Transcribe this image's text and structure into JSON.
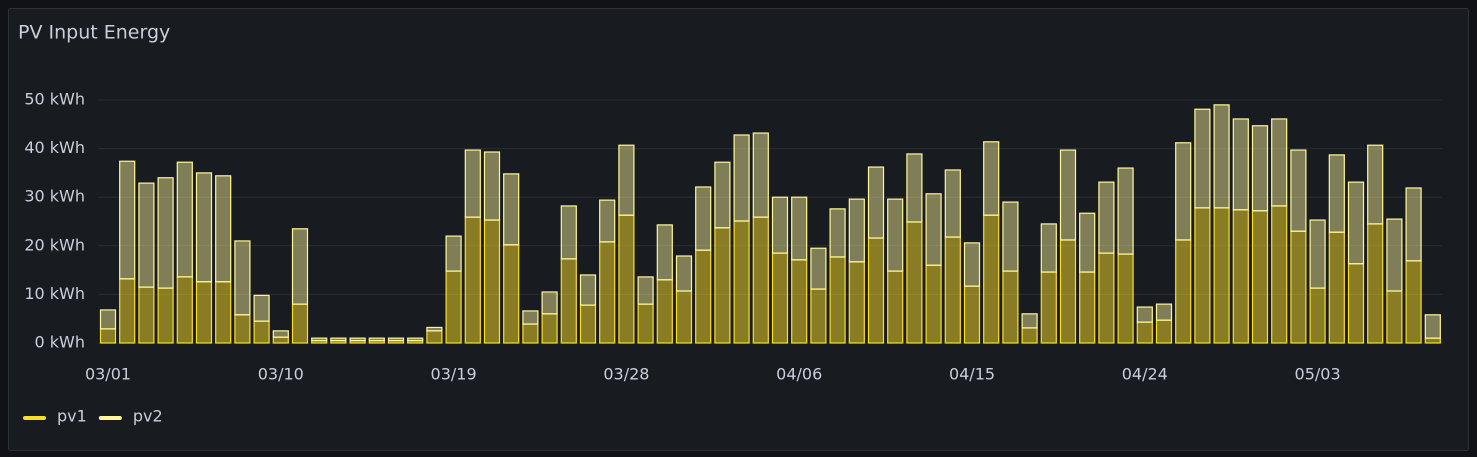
{
  "chart_data": {
    "type": "bar",
    "stacked": true,
    "title": "PV Input Energy",
    "categories": [
      "03/01",
      null,
      null,
      null,
      null,
      null,
      null,
      null,
      null,
      "03/10",
      null,
      null,
      null,
      null,
      null,
      null,
      null,
      null,
      "03/19",
      null,
      null,
      null,
      null,
      null,
      null,
      null,
      null,
      "03/28",
      null,
      null,
      null,
      null,
      null,
      null,
      null,
      null,
      "04/06",
      null,
      null,
      null,
      null,
      null,
      null,
      null,
      null,
      "04/15",
      null,
      null,
      null,
      null,
      null,
      null,
      null,
      null,
      "04/24",
      null,
      null,
      null,
      null,
      null,
      null,
      null,
      null,
      "05/03",
      null,
      null,
      null,
      null,
      null,
      null
    ],
    "series": [
      {
        "name": "pv1",
        "color": "#fade2a",
        "values": [
          2.9,
          13.2,
          11.5,
          11.3,
          13.6,
          12.6,
          12.6,
          5.8,
          4.5,
          1.2,
          8.0,
          0.5,
          0.5,
          0.5,
          0.5,
          0.5,
          0.5,
          2.5,
          14.8,
          25.9,
          25.3,
          20.2,
          3.9,
          6.0,
          17.3,
          7.8,
          20.8,
          26.3,
          8.0,
          13.0,
          10.7,
          19.1,
          23.7,
          25.1,
          25.9,
          18.5,
          17.1,
          11.1,
          17.7,
          16.7,
          21.6,
          14.8,
          24.9,
          16.0,
          21.8,
          11.7,
          26.3,
          14.8,
          3.1,
          14.6,
          21.2,
          14.6,
          18.5,
          18.3,
          4.3,
          4.7,
          21.2,
          27.8,
          27.8,
          27.4,
          27.2,
          28.2,
          23.0,
          11.3,
          22.8,
          16.3,
          24.5,
          10.7,
          16.9,
          1.0
        ]
      },
      {
        "name": "pv2",
        "color": "#fff899",
        "values": [
          3.9,
          24.2,
          21.4,
          22.7,
          23.6,
          22.4,
          21.8,
          15.2,
          5.3,
          1.3,
          15.5,
          0.5,
          0.5,
          0.5,
          0.5,
          0.5,
          0.5,
          0.7,
          7.2,
          13.8,
          14.0,
          14.6,
          2.7,
          4.5,
          10.9,
          6.2,
          8.6,
          14.4,
          5.6,
          11.3,
          7.2,
          13.0,
          13.5,
          17.7,
          17.3,
          11.5,
          12.9,
          8.4,
          9.9,
          12.9,
          14.6,
          14.8,
          14.0,
          14.7,
          13.8,
          8.9,
          15.1,
          14.2,
          2.9,
          9.9,
          18.5,
          12.1,
          14.6,
          17.7,
          3.1,
          3.3,
          20.0,
          20.3,
          21.2,
          18.7,
          17.5,
          17.9,
          16.7,
          14.0,
          15.9,
          16.8,
          16.2,
          14.8,
          15.0,
          4.8
        ]
      }
    ],
    "ylim": [
      0,
      55
    ],
    "yticks": [
      {
        "value": 0,
        "label": "0 kWh"
      },
      {
        "value": 10,
        "label": "10 kWh"
      },
      {
        "value": 20,
        "label": "20 kWh"
      },
      {
        "value": 30,
        "label": "30 kWh"
      },
      {
        "value": 40,
        "label": "40 kWh"
      },
      {
        "value": 50,
        "label": "50 kWh"
      }
    ],
    "grid": true,
    "legend": "bottom-left"
  }
}
